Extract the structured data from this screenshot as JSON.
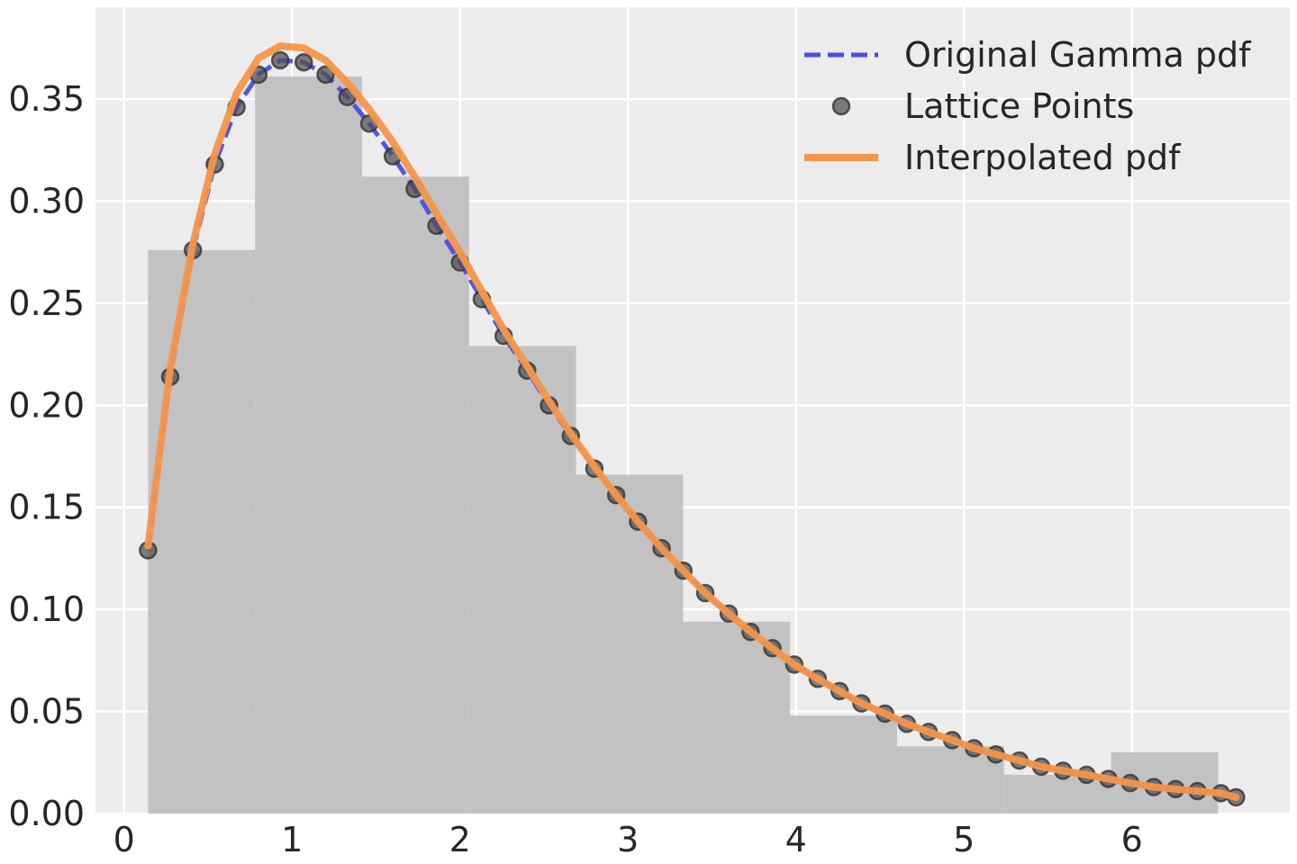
{
  "chart_data": {
    "type": "line",
    "title": "",
    "xlabel": "",
    "ylabel": "",
    "xlim": [
      -0.17,
      6.94
    ],
    "ylim": [
      0,
      0.395
    ],
    "x_ticks": [
      0,
      1,
      2,
      3,
      4,
      5,
      6
    ],
    "x_tick_labels": [
      "0",
      "1",
      "2",
      "3",
      "4",
      "5",
      "6"
    ],
    "y_ticks": [
      0,
      0.05,
      0.1,
      0.15,
      0.2,
      0.25,
      0.3,
      0.35
    ],
    "y_tick_labels": [
      "0.00",
      "0.05",
      "0.10",
      "0.15",
      "0.20",
      "0.25",
      "0.30",
      "0.35"
    ],
    "grid": true,
    "legend_position": "top-right",
    "legend": [
      {
        "label": "Original Gamma pdf",
        "style": "dashed-line",
        "color": "#4c4ce6"
      },
      {
        "label": "Lattice Points",
        "style": "marker",
        "color": "#4d4d4d"
      },
      {
        "label": "Interpolated pdf",
        "style": "solid-line",
        "color": "#f5964a"
      }
    ],
    "histogram": {
      "color": "#bebebe",
      "bins": [
        {
          "x0": 0.143,
          "x1": 0.78,
          "height": 0.276
        },
        {
          "x0": 0.78,
          "x1": 1.417,
          "height": 0.361
        },
        {
          "x0": 1.417,
          "x1": 2.054,
          "height": 0.312
        },
        {
          "x0": 2.054,
          "x1": 2.691,
          "height": 0.229
        },
        {
          "x0": 2.691,
          "x1": 3.328,
          "height": 0.166
        },
        {
          "x0": 3.328,
          "x1": 3.965,
          "height": 0.094
        },
        {
          "x0": 3.965,
          "x1": 4.602,
          "height": 0.048
        },
        {
          "x0": 4.602,
          "x1": 5.239,
          "height": 0.033
        },
        {
          "x0": 5.239,
          "x1": 5.876,
          "height": 0.019
        },
        {
          "x0": 5.876,
          "x1": 6.513,
          "height": 0.03
        }
      ]
    },
    "series": [
      {
        "name": "Original Gamma pdf",
        "style": "dashed",
        "color": "#4c4ce6",
        "x": [
          0.143,
          0.275,
          0.41,
          0.54,
          0.67,
          0.8,
          0.93,
          1.07,
          1.2,
          1.33,
          1.46,
          1.6,
          1.73,
          1.86,
          2.0,
          2.13,
          2.26,
          2.4,
          2.53,
          2.66,
          2.8,
          2.93,
          3.06,
          3.2,
          3.33,
          3.46,
          3.6,
          3.73,
          3.86,
          3.99,
          4.13,
          4.26,
          4.39,
          4.53,
          4.66,
          4.79,
          4.93,
          5.06,
          5.19,
          5.33,
          5.46,
          5.59,
          5.73,
          5.86,
          5.99,
          6.13,
          6.26,
          6.39,
          6.53,
          6.62
        ],
        "values": [
          0.129,
          0.214,
          0.276,
          0.318,
          0.346,
          0.362,
          0.369,
          0.368,
          0.362,
          0.351,
          0.338,
          0.322,
          0.306,
          0.288,
          0.27,
          0.252,
          0.234,
          0.217,
          0.2,
          0.185,
          0.169,
          0.156,
          0.143,
          0.13,
          0.119,
          0.108,
          0.098,
          0.089,
          0.081,
          0.073,
          0.066,
          0.06,
          0.054,
          0.049,
          0.044,
          0.04,
          0.036,
          0.032,
          0.029,
          0.026,
          0.023,
          0.021,
          0.019,
          0.017,
          0.015,
          0.013,
          0.012,
          0.011,
          0.01,
          0.008
        ]
      },
      {
        "name": "Lattice Points",
        "style": "markers",
        "color": "#4d4d4d",
        "x": [
          0.143,
          0.275,
          0.41,
          0.54,
          0.67,
          0.8,
          0.93,
          1.07,
          1.2,
          1.33,
          1.46,
          1.6,
          1.73,
          1.86,
          2.0,
          2.13,
          2.26,
          2.4,
          2.53,
          2.66,
          2.8,
          2.93,
          3.06,
          3.2,
          3.33,
          3.46,
          3.6,
          3.73,
          3.86,
          3.99,
          4.13,
          4.26,
          4.39,
          4.53,
          4.66,
          4.79,
          4.93,
          5.06,
          5.19,
          5.33,
          5.46,
          5.59,
          5.73,
          5.86,
          5.99,
          6.13,
          6.26,
          6.39,
          6.53,
          6.62
        ],
        "values": [
          0.129,
          0.214,
          0.276,
          0.318,
          0.346,
          0.362,
          0.369,
          0.368,
          0.362,
          0.351,
          0.338,
          0.322,
          0.306,
          0.288,
          0.27,
          0.252,
          0.234,
          0.217,
          0.2,
          0.185,
          0.169,
          0.156,
          0.143,
          0.13,
          0.119,
          0.108,
          0.098,
          0.089,
          0.081,
          0.073,
          0.066,
          0.06,
          0.054,
          0.049,
          0.044,
          0.04,
          0.036,
          0.032,
          0.029,
          0.026,
          0.023,
          0.021,
          0.019,
          0.017,
          0.015,
          0.013,
          0.012,
          0.011,
          0.01,
          0.008
        ]
      },
      {
        "name": "Interpolated pdf",
        "style": "solid",
        "color": "#f5964a",
        "x": [
          0.143,
          0.275,
          0.41,
          0.54,
          0.67,
          0.8,
          0.93,
          1.07,
          1.2,
          1.33,
          1.46,
          1.6,
          1.73,
          1.86,
          2.0,
          2.13,
          2.26,
          2.4,
          2.53,
          2.66,
          2.8,
          2.93,
          3.06,
          3.2,
          3.33,
          3.46,
          3.6,
          3.73,
          3.86,
          3.99,
          4.13,
          4.26,
          4.39,
          4.53,
          4.66,
          4.79,
          4.93,
          5.06,
          5.19,
          5.33,
          5.46,
          5.59,
          5.73,
          5.86,
          5.99,
          6.13,
          6.26,
          6.39,
          6.53,
          6.62
        ],
        "values": [
          0.131,
          0.218,
          0.279,
          0.323,
          0.353,
          0.37,
          0.376,
          0.375,
          0.369,
          0.358,
          0.345,
          0.329,
          0.312,
          0.294,
          0.275,
          0.256,
          0.237,
          0.219,
          0.202,
          0.186,
          0.17,
          0.156,
          0.143,
          0.13,
          0.119,
          0.108,
          0.098,
          0.089,
          0.081,
          0.073,
          0.066,
          0.06,
          0.054,
          0.049,
          0.044,
          0.04,
          0.036,
          0.032,
          0.029,
          0.026,
          0.023,
          0.021,
          0.019,
          0.017,
          0.015,
          0.013,
          0.012,
          0.011,
          0.01,
          0.008
        ]
      }
    ]
  }
}
